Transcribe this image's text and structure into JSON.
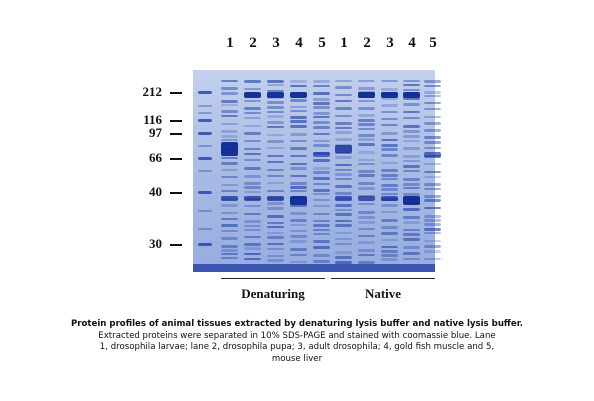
{
  "lane_numbers": [
    "1",
    "2",
    "3",
    "4",
    "5",
    "1",
    "2",
    "3",
    "4",
    "5"
  ],
  "markers": [
    "212",
    "116",
    "97",
    "66",
    "40",
    "30"
  ],
  "groups": [
    "Denaturing",
    "Native"
  ],
  "caption": {
    "line1": "Protein profiles of animal tissues extracted by denaturing lysis buffer and native lysis buffer.",
    "line2": "Extracted proteins were separated in 10% SDS-PAGE and stained with coomassie blue. Lane",
    "line3": "1, drosophila larvae; lane 2, drosophila pupa; 3, adult drosophila; 4, gold fish muscle and 5,",
    "line4": "mouse liver"
  },
  "colors": {
    "gel_background": "#aebfe6",
    "band": "#1f3fa8",
    "band_strong": "#0d2a96"
  }
}
